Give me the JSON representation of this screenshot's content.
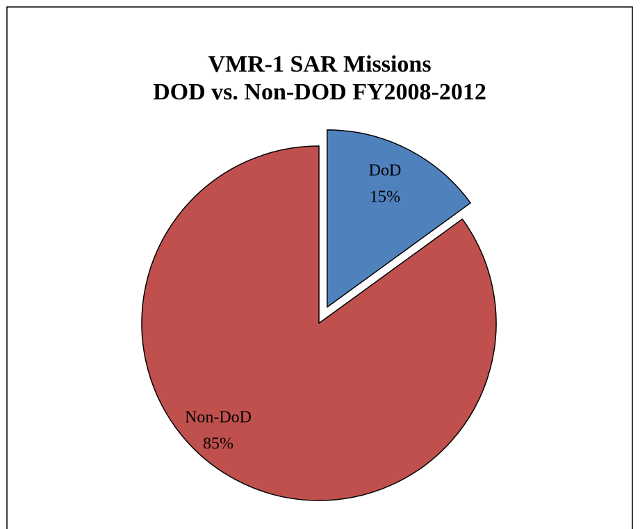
{
  "chart_data": {
    "type": "pie",
    "title": [
      "VMR-1 SAR Missions",
      "DOD vs. Non-DOD FY2008-2012"
    ],
    "categories": [
      "DoD",
      "Non-DoD"
    ],
    "values": [
      15,
      85
    ],
    "value_labels": [
      "15%",
      "85%"
    ],
    "colors": [
      "#4f81bd",
      "#c0504d"
    ]
  }
}
